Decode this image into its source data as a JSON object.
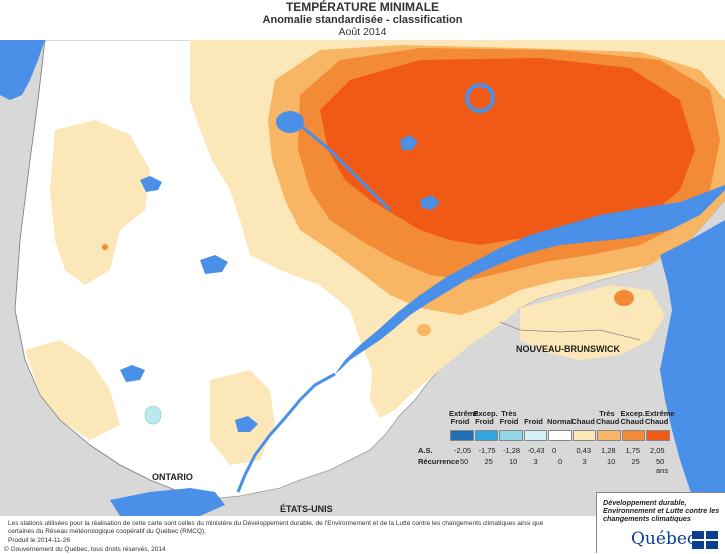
{
  "title": "TEMPÉRATURE MINIMALE",
  "subtitle": "Anomalie standardisée - classification",
  "date": "Août 2014",
  "labels": {
    "new_brunswick": "NOUVEAU-BRUNSWICK",
    "ontario": "ONTARIO",
    "usa": "ÉTATS-UNIS"
  },
  "legend": {
    "categories": [
      {
        "label": "Extrême\nFroid",
        "color": "#1f6fb5"
      },
      {
        "label": "Excep.\nFroid",
        "color": "#2fa6e0"
      },
      {
        "label": "Très\nFroid",
        "color": "#8fd6e6"
      },
      {
        "label": "Froid",
        "color": "#d6eef5"
      },
      {
        "label": "Normal",
        "color": "#ffffff"
      },
      {
        "label": "Chaud",
        "color": "#fbe7b8"
      },
      {
        "label": "Très\nChaud",
        "color": "#f8b564"
      },
      {
        "label": "Excep.\nChaud",
        "color": "#f38a36"
      },
      {
        "label": "Extrême\nChaud",
        "color": "#f05a14"
      }
    ],
    "as_label": "A.S.",
    "as_values": [
      "-2,05",
      "-1,75",
      "-1,28",
      "-0,43",
      "0",
      "0,43",
      "1,28",
      "1,75",
      "2,05"
    ],
    "recurrence_label": "Récurrence",
    "recurrence_values": [
      "50",
      "25",
      "10",
      "3",
      "0",
      "3",
      "10",
      "25",
      "50 ans"
    ]
  },
  "footer": {
    "note": "Les stations utilisées pour la réalisation de cette carte sont celles du ministère du Développement durable, de l'Environnement et de la Lutte contre les changements climatiques ainsi que certaines du Réseau météorologique coopératif du Québec (RMCQ).",
    "produced": "Produit le 2014-11-26",
    "copyright": "© Gouvernement du Québec, tous droits réservés, 2014"
  },
  "brand": {
    "ministry": "Développement durable, Environnement et Lutte contre les changements climatiques",
    "name": "Québec"
  },
  "colors": {
    "water": "#4a90e8",
    "normal": "#ffffff",
    "warm": "#fbe7b8",
    "very_warm": "#f8b564",
    "exc_warm": "#f38a36",
    "extreme_warm": "#f05a14",
    "cold": "#d6eef5",
    "outside": "#d8d8d8"
  }
}
